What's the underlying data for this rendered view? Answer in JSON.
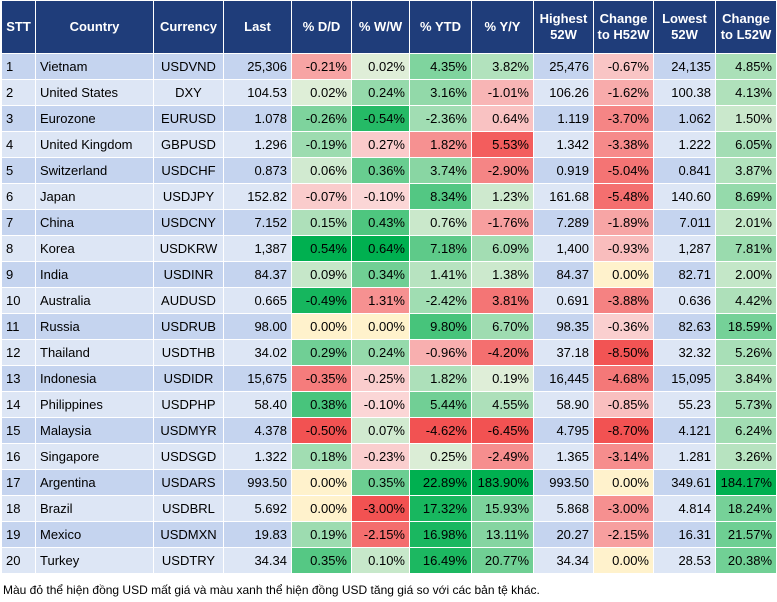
{
  "header": {
    "columns": [
      "STT",
      "Country",
      "Currency",
      "Last",
      "% D/D",
      "% W/W",
      "% YTD",
      "% Y/Y",
      "Highest 52W",
      "Change to H52W",
      "Lowest 52W",
      "Change to L52W"
    ]
  },
  "table": {
    "rows": [
      [
        "1",
        "Vietnam",
        "USDVND",
        "25,306",
        "-0.21%",
        "0.02%",
        "4.35%",
        "3.82%",
        "25,476",
        "-0.67%",
        "24,135",
        "4.85%"
      ],
      [
        "2",
        "United States",
        "DXY",
        "104.53",
        "0.02%",
        "0.24%",
        "3.16%",
        "-1.01%",
        "106.26",
        "-1.62%",
        "100.38",
        "4.13%"
      ],
      [
        "3",
        "Eurozone",
        "EURUSD",
        "1.078",
        "-0.26%",
        "-0.54%",
        "-2.36%",
        "0.64%",
        "1.119",
        "-3.70%",
        "1.062",
        "1.50%"
      ],
      [
        "4",
        "United Kingdom",
        "GBPUSD",
        "1.296",
        "-0.19%",
        "0.27%",
        "1.82%",
        "5.53%",
        "1.342",
        "-3.38%",
        "1.222",
        "6.05%"
      ],
      [
        "5",
        "Switzerland",
        "USDCHF",
        "0.873",
        "0.06%",
        "0.36%",
        "3.74%",
        "-2.90%",
        "0.919",
        "-5.04%",
        "0.841",
        "3.87%"
      ],
      [
        "6",
        "Japan",
        "USDJPY",
        "152.82",
        "-0.07%",
        "-0.10%",
        "8.34%",
        "1.23%",
        "161.68",
        "-5.48%",
        "140.60",
        "8.69%"
      ],
      [
        "7",
        "China",
        "USDCNY",
        "7.152",
        "0.15%",
        "0.43%",
        "0.76%",
        "-1.76%",
        "7.289",
        "-1.89%",
        "7.011",
        "2.01%"
      ],
      [
        "8",
        "Korea",
        "USDKRW",
        "1,387",
        "0.54%",
        "0.64%",
        "7.18%",
        "6.09%",
        "1,400",
        "-0.93%",
        "1,287",
        "7.81%"
      ],
      [
        "9",
        "India",
        "USDINR",
        "84.37",
        "0.09%",
        "0.34%",
        "1.41%",
        "1.38%",
        "84.37",
        "0.00%",
        "82.71",
        "2.00%"
      ],
      [
        "10",
        "Australia",
        "AUDUSD",
        "0.665",
        "-0.49%",
        "1.31%",
        "-2.42%",
        "3.81%",
        "0.691",
        "-3.88%",
        "0.636",
        "4.42%"
      ],
      [
        "11",
        "Russia",
        "USDRUB",
        "98.00",
        "0.00%",
        "0.00%",
        "9.80%",
        "6.70%",
        "98.35",
        "-0.36%",
        "82.63",
        "18.59%"
      ],
      [
        "12",
        "Thailand",
        "USDTHB",
        "34.02",
        "0.29%",
        "0.24%",
        "-0.96%",
        "-4.20%",
        "37.18",
        "-8.50%",
        "32.32",
        "5.26%"
      ],
      [
        "13",
        "Indonesia",
        "USDIDR",
        "15,675",
        "-0.35%",
        "-0.25%",
        "1.82%",
        "0.19%",
        "16,445",
        "-4.68%",
        "15,095",
        "3.84%"
      ],
      [
        "14",
        "Philippines",
        "USDPHP",
        "58.40",
        "0.38%",
        "-0.10%",
        "5.44%",
        "4.55%",
        "58.90",
        "-0.85%",
        "55.23",
        "5.73%"
      ],
      [
        "15",
        "Malaysia",
        "USDMYR",
        "4.378",
        "-0.50%",
        "0.07%",
        "-4.62%",
        "-6.45%",
        "4.795",
        "-8.70%",
        "4.121",
        "6.24%"
      ],
      [
        "16",
        "Singapore",
        "USDSGD",
        "1.322",
        "0.18%",
        "-0.23%",
        "0.25%",
        "-2.49%",
        "1.365",
        "-3.14%",
        "1.281",
        "3.26%"
      ],
      [
        "17",
        "Argentina",
        "USDARS",
        "993.50",
        "0.00%",
        "0.35%",
        "22.89%",
        "183.90%",
        "993.50",
        "0.00%",
        "349.61",
        "184.17%"
      ],
      [
        "18",
        "Brazil",
        "USDBRL",
        "5.692",
        "0.00%",
        "-3.00%",
        "17.32%",
        "15.93%",
        "5.868",
        "-3.00%",
        "4.814",
        "18.24%"
      ],
      [
        "19",
        "Mexico",
        "USDMXN",
        "19.83",
        "0.19%",
        "-2.15%",
        "16.98%",
        "13.11%",
        "20.27",
        "-2.15%",
        "16.31",
        "21.57%"
      ],
      [
        "20",
        "Turkey",
        "USDTRY",
        "34.34",
        "0.35%",
        "0.10%",
        "16.49%",
        "20.77%",
        "34.34",
        "0.00%",
        "28.53",
        "20.38%"
      ]
    ]
  },
  "footer": {
    "note": "Màu đỏ thể hiện đồng USD mất giá và màu xanh thể hiện đồng USD tăng giá so với các bản tệ khác."
  }
}
